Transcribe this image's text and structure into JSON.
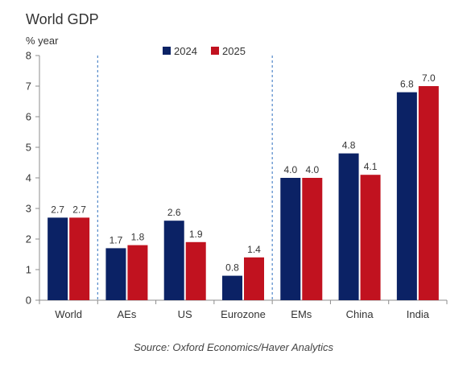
{
  "chart_data": {
    "type": "bar",
    "title": "World GDP",
    "ylabel": "% year",
    "xlabel": "",
    "ylim": [
      0,
      8
    ],
    "yticks": [
      0,
      1,
      2,
      3,
      4,
      5,
      6,
      7,
      8
    ],
    "categories": [
      "World",
      "AEs",
      "US",
      "Eurozone",
      "EMs",
      "China",
      "India"
    ],
    "series": [
      {
        "name": "2024",
        "color": "#0b2265",
        "values": [
          2.7,
          1.7,
          2.6,
          0.8,
          4.0,
          4.8,
          6.8
        ]
      },
      {
        "name": "2025",
        "color": "#c1121f",
        "values": [
          2.7,
          1.8,
          1.9,
          1.4,
          4.0,
          4.1,
          7.0
        ]
      }
    ],
    "data_labels": [
      [
        "2.7",
        "1.7",
        "2.6",
        "0.8",
        "4.0",
        "4.8",
        "6.8"
      ],
      [
        "2.7",
        "1.8",
        "1.9",
        "1.4",
        "4.0",
        "4.1",
        "7.0"
      ]
    ],
    "legend_position": "top-center",
    "grid": false,
    "group_dividers_after": [
      "World",
      "Eurozone"
    ],
    "source": "Source: Oxford Economics/Haver Analytics"
  }
}
